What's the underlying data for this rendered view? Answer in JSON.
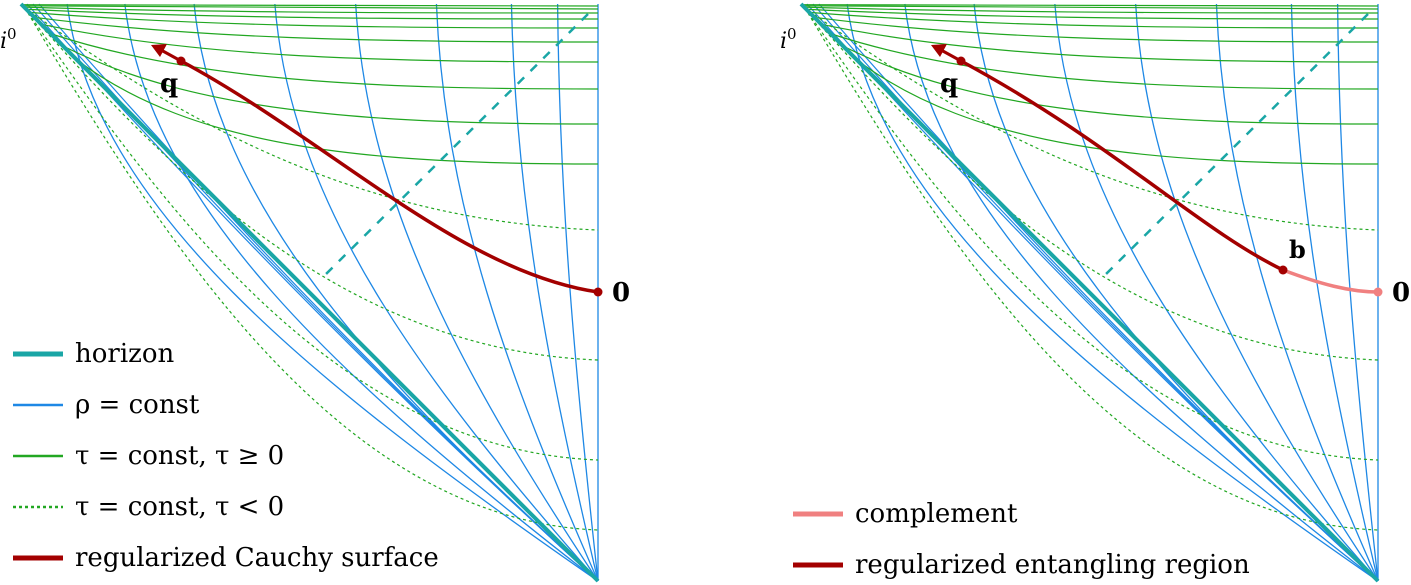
{
  "panels": [
    {
      "corner_label_base": "i",
      "corner_label_sup": "0",
      "point_q": "q",
      "point_origin": "0",
      "point_b": "",
      "legend": [
        {
          "style": "horizon",
          "text": "horizon"
        },
        {
          "style": "rho",
          "text": "ρ = const"
        },
        {
          "style": "tau-pos",
          "text": "τ = const, τ ≥ 0"
        },
        {
          "style": "tau-neg",
          "text": "τ = const, τ < 0"
        },
        {
          "style": "cauchy",
          "text": "regularized Cauchy surface"
        }
      ]
    },
    {
      "corner_label_base": "i",
      "corner_label_sup": "0",
      "point_q": "q",
      "point_origin": "0",
      "point_b": "b",
      "legend": [
        {
          "style": "complement",
          "text": "complement"
        },
        {
          "style": "cauchy",
          "text": "regularized entangling region"
        }
      ]
    }
  ],
  "colors": {
    "horizon": "#1aa6a6",
    "rho": "#1e88e5",
    "tau": "#22a722",
    "cauchy": "#a30000",
    "complement": "#f08080",
    "dashed": "#1aa6a6"
  }
}
